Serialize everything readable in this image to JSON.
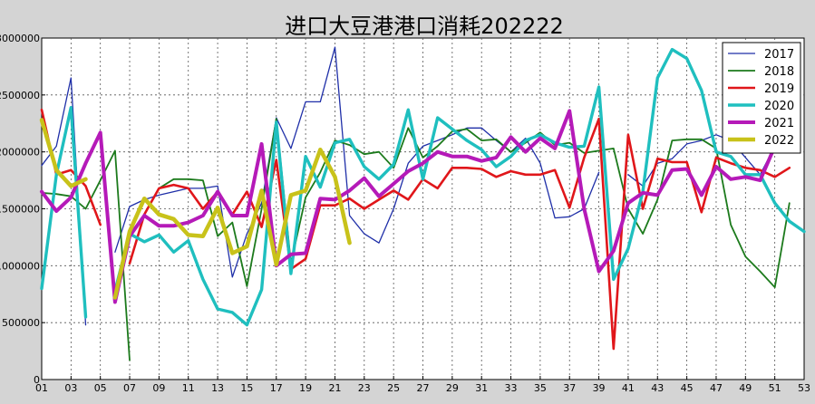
{
  "chart_data": {
    "type": "line",
    "title": "进口大豆港港口消耗202222",
    "xlabel": "",
    "ylabel": "",
    "ylim": [
      0,
      3000000
    ],
    "xlim": [
      1,
      53
    ],
    "grid": true,
    "legend_position": "top-right",
    "x_ticks": [
      "01",
      "03",
      "05",
      "07",
      "09",
      "11",
      "13",
      "15",
      "17",
      "19",
      "21",
      "23",
      "25",
      "27",
      "29",
      "31",
      "33",
      "35",
      "37",
      "39",
      "41",
      "43",
      "45",
      "47",
      "49",
      "51",
      "53"
    ],
    "y_ticks": [
      0,
      500000,
      1000000,
      1500000,
      2000000,
      2500000,
      3000000
    ],
    "y_tick_labels": [
      "0",
      "500000",
      "1000000",
      "1500000",
      "2000000",
      "2500000",
      "3000000"
    ],
    "series": [
      {
        "name": "2017",
        "color": "#1f2fa8",
        "width": 1.3,
        "points": [
          [
            1,
            1880000
          ],
          [
            2,
            2050000
          ],
          [
            3,
            2650000
          ],
          [
            4,
            480000
          ],
          [
            null,
            null
          ],
          [
            6,
            1120000
          ],
          [
            7,
            1520000
          ],
          [
            8,
            1580000
          ],
          [
            9,
            1620000
          ],
          [
            10,
            1650000
          ],
          [
            11,
            1680000
          ],
          [
            12,
            1680000
          ],
          [
            13,
            1700000
          ],
          [
            14,
            900000
          ],
          [
            15,
            1280000
          ],
          [
            16,
            1550000
          ],
          [
            17,
            2300000
          ],
          [
            18,
            2030000
          ],
          [
            19,
            2440000
          ],
          [
            20,
            2440000
          ],
          [
            21,
            2920000
          ],
          [
            22,
            1440000
          ],
          [
            23,
            1280000
          ],
          [
            24,
            1200000
          ],
          [
            25,
            1500000
          ],
          [
            26,
            1900000
          ],
          [
            27,
            2050000
          ],
          [
            28,
            2100000
          ],
          [
            29,
            2150000
          ],
          [
            30,
            2210000
          ],
          [
            31,
            2210000
          ],
          [
            32,
            2100000
          ],
          [
            33,
            2000000
          ],
          [
            34,
            2120000
          ],
          [
            35,
            1900000
          ],
          [
            36,
            1420000
          ],
          [
            37,
            1430000
          ],
          [
            38,
            1500000
          ],
          [
            39,
            1820000
          ],
          [
            null,
            null
          ],
          [
            41,
            1800000
          ],
          [
            42,
            1700000
          ],
          [
            43,
            1900000
          ],
          [
            44,
            1940000
          ],
          [
            45,
            2070000
          ],
          [
            46,
            2100000
          ],
          [
            47,
            2150000
          ],
          [
            48,
            2100000
          ],
          [
            49,
            1950000
          ],
          [
            50,
            1800000
          ],
          [
            51,
            2050000
          ],
          [
            52,
            2200000
          ]
        ]
      },
      {
        "name": "2018",
        "color": "#1c7a1c",
        "width": 1.8,
        "points": [
          [
            1,
            1640000
          ],
          [
            2,
            1630000
          ],
          [
            3,
            1610000
          ],
          [
            4,
            1500000
          ],
          [
            5,
            1750000
          ],
          [
            6,
            2010000
          ],
          [
            7,
            170000
          ],
          [
            null,
            null
          ],
          [
            9,
            1680000
          ],
          [
            10,
            1760000
          ],
          [
            11,
            1760000
          ],
          [
            12,
            1750000
          ],
          [
            13,
            1260000
          ],
          [
            14,
            1380000
          ],
          [
            15,
            820000
          ],
          [
            16,
            1500000
          ],
          [
            17,
            2290000
          ],
          [
            18,
            1020000
          ],
          [
            19,
            1600000
          ],
          [
            20,
            1820000
          ],
          [
            21,
            2100000
          ],
          [
            22,
            2060000
          ],
          [
            23,
            1980000
          ],
          [
            24,
            2000000
          ],
          [
            25,
            1860000
          ],
          [
            26,
            2210000
          ],
          [
            27,
            1950000
          ],
          [
            28,
            2050000
          ],
          [
            29,
            2180000
          ],
          [
            30,
            2200000
          ],
          [
            31,
            2100000
          ],
          [
            32,
            2110000
          ],
          [
            33,
            2000000
          ],
          [
            34,
            2080000
          ],
          [
            35,
            2170000
          ],
          [
            36,
            2060000
          ],
          [
            37,
            2080000
          ],
          [
            38,
            1990000
          ],
          [
            39,
            2010000
          ],
          [
            40,
            2030000
          ],
          [
            41,
            1500000
          ],
          [
            42,
            1280000
          ],
          [
            43,
            1580000
          ],
          [
            44,
            2100000
          ],
          [
            45,
            2110000
          ],
          [
            46,
            2110000
          ],
          [
            47,
            2030000
          ],
          [
            48,
            1360000
          ],
          [
            49,
            1080000
          ],
          [
            50,
            950000
          ],
          [
            51,
            810000
          ],
          [
            52,
            1550000
          ]
        ]
      },
      {
        "name": "2019",
        "color": "#e0161a",
        "width": 2.6,
        "points": [
          [
            1,
            2370000
          ],
          [
            2,
            1800000
          ],
          [
            3,
            1840000
          ],
          [
            4,
            1700000
          ],
          [
            5,
            1360000
          ],
          [
            null,
            null
          ],
          [
            7,
            1020000
          ],
          [
            8,
            1450000
          ],
          [
            9,
            1680000
          ],
          [
            10,
            1710000
          ],
          [
            11,
            1680000
          ],
          [
            12,
            1500000
          ],
          [
            13,
            1650000
          ],
          [
            14,
            1450000
          ],
          [
            15,
            1650000
          ],
          [
            16,
            1340000
          ],
          [
            17,
            1930000
          ],
          [
            18,
            970000
          ],
          [
            19,
            1060000
          ],
          [
            20,
            1530000
          ],
          [
            21,
            1530000
          ],
          [
            22,
            1590000
          ],
          [
            23,
            1500000
          ],
          [
            24,
            1580000
          ],
          [
            25,
            1660000
          ],
          [
            26,
            1580000
          ],
          [
            27,
            1760000
          ],
          [
            28,
            1680000
          ],
          [
            29,
            1860000
          ],
          [
            30,
            1860000
          ],
          [
            31,
            1850000
          ],
          [
            32,
            1780000
          ],
          [
            33,
            1830000
          ],
          [
            34,
            1800000
          ],
          [
            35,
            1800000
          ],
          [
            36,
            1840000
          ],
          [
            37,
            1510000
          ],
          [
            38,
            1950000
          ],
          [
            39,
            2290000
          ],
          [
            40,
            270000
          ],
          [
            41,
            2150000
          ],
          [
            42,
            1500000
          ],
          [
            43,
            1940000
          ],
          [
            44,
            1910000
          ],
          [
            45,
            1910000
          ],
          [
            46,
            1470000
          ],
          [
            47,
            1950000
          ],
          [
            48,
            1900000
          ],
          [
            49,
            1860000
          ],
          [
            50,
            1840000
          ],
          [
            51,
            1780000
          ],
          [
            52,
            1860000
          ]
        ]
      },
      {
        "name": "2020",
        "color": "#1fbfbf",
        "width": 3.4,
        "points": [
          [
            1,
            800000
          ],
          [
            2,
            1800000
          ],
          [
            3,
            2390000
          ],
          [
            4,
            550000
          ],
          [
            null,
            null
          ],
          [
            6,
            780000
          ],
          [
            7,
            1280000
          ],
          [
            8,
            1210000
          ],
          [
            9,
            1270000
          ],
          [
            10,
            1120000
          ],
          [
            11,
            1220000
          ],
          [
            12,
            880000
          ],
          [
            13,
            620000
          ],
          [
            14,
            590000
          ],
          [
            15,
            480000
          ],
          [
            16,
            790000
          ],
          [
            17,
            2260000
          ],
          [
            18,
            930000
          ],
          [
            19,
            1960000
          ],
          [
            20,
            1690000
          ],
          [
            21,
            2080000
          ],
          [
            22,
            2110000
          ],
          [
            23,
            1870000
          ],
          [
            24,
            1760000
          ],
          [
            25,
            1890000
          ],
          [
            26,
            2370000
          ],
          [
            27,
            1760000
          ],
          [
            28,
            2300000
          ],
          [
            29,
            2200000
          ],
          [
            30,
            2100000
          ],
          [
            31,
            2020000
          ],
          [
            32,
            1870000
          ],
          [
            33,
            1960000
          ],
          [
            34,
            2100000
          ],
          [
            35,
            2150000
          ],
          [
            36,
            2080000
          ],
          [
            37,
            2040000
          ],
          [
            38,
            2050000
          ],
          [
            39,
            2570000
          ],
          [
            40,
            880000
          ],
          [
            41,
            1150000
          ],
          [
            42,
            1650000
          ],
          [
            43,
            2650000
          ],
          [
            44,
            2900000
          ],
          [
            45,
            2820000
          ],
          [
            46,
            2540000
          ],
          [
            47,
            2000000
          ],
          [
            48,
            1960000
          ],
          [
            49,
            1800000
          ],
          [
            50,
            1800000
          ],
          [
            51,
            1550000
          ],
          [
            52,
            1390000
          ],
          [
            53,
            1300000
          ]
        ]
      },
      {
        "name": "2021",
        "color": "#b51ab8",
        "width": 4.0,
        "points": [
          [
            1,
            1650000
          ],
          [
            2,
            1480000
          ],
          [
            3,
            1600000
          ],
          [
            4,
            1900000
          ],
          [
            5,
            2170000
          ],
          [
            6,
            680000
          ],
          [
            7,
            1260000
          ],
          [
            8,
            1440000
          ],
          [
            9,
            1350000
          ],
          [
            10,
            1350000
          ],
          [
            11,
            1380000
          ],
          [
            12,
            1440000
          ],
          [
            13,
            1650000
          ],
          [
            14,
            1440000
          ],
          [
            15,
            1440000
          ],
          [
            16,
            2070000
          ],
          [
            17,
            1000000
          ],
          [
            18,
            1100000
          ],
          [
            19,
            1110000
          ],
          [
            20,
            1590000
          ],
          [
            21,
            1580000
          ],
          [
            22,
            1660000
          ],
          [
            23,
            1770000
          ],
          [
            24,
            1610000
          ],
          [
            25,
            1720000
          ],
          [
            26,
            1830000
          ],
          [
            27,
            1900000
          ],
          [
            28,
            2000000
          ],
          [
            29,
            1960000
          ],
          [
            30,
            1960000
          ],
          [
            31,
            1920000
          ],
          [
            32,
            1950000
          ],
          [
            33,
            2130000
          ],
          [
            34,
            2000000
          ],
          [
            35,
            2120000
          ],
          [
            36,
            2030000
          ],
          [
            37,
            2360000
          ],
          [
            38,
            1500000
          ],
          [
            39,
            950000
          ],
          [
            40,
            1130000
          ],
          [
            41,
            1550000
          ],
          [
            42,
            1640000
          ],
          [
            43,
            1620000
          ],
          [
            44,
            1840000
          ],
          [
            45,
            1850000
          ],
          [
            46,
            1620000
          ],
          [
            47,
            1870000
          ],
          [
            48,
            1760000
          ],
          [
            49,
            1780000
          ],
          [
            50,
            1750000
          ],
          [
            51,
            2050000
          ]
        ]
      },
      {
        "name": "2022",
        "color": "#c8c21a",
        "width": 4.5,
        "points": [
          [
            1,
            2280000
          ],
          [
            2,
            1840000
          ],
          [
            3,
            1700000
          ],
          [
            4,
            1760000
          ],
          [
            null,
            null
          ],
          [
            6,
            720000
          ],
          [
            7,
            1300000
          ],
          [
            8,
            1590000
          ],
          [
            9,
            1450000
          ],
          [
            10,
            1410000
          ],
          [
            11,
            1270000
          ],
          [
            12,
            1260000
          ],
          [
            13,
            1510000
          ],
          [
            14,
            1110000
          ],
          [
            15,
            1170000
          ],
          [
            16,
            1660000
          ],
          [
            17,
            1010000
          ],
          [
            18,
            1620000
          ],
          [
            19,
            1660000
          ],
          [
            20,
            2020000
          ],
          [
            21,
            1780000
          ],
          [
            22,
            1200000
          ]
        ]
      }
    ]
  }
}
